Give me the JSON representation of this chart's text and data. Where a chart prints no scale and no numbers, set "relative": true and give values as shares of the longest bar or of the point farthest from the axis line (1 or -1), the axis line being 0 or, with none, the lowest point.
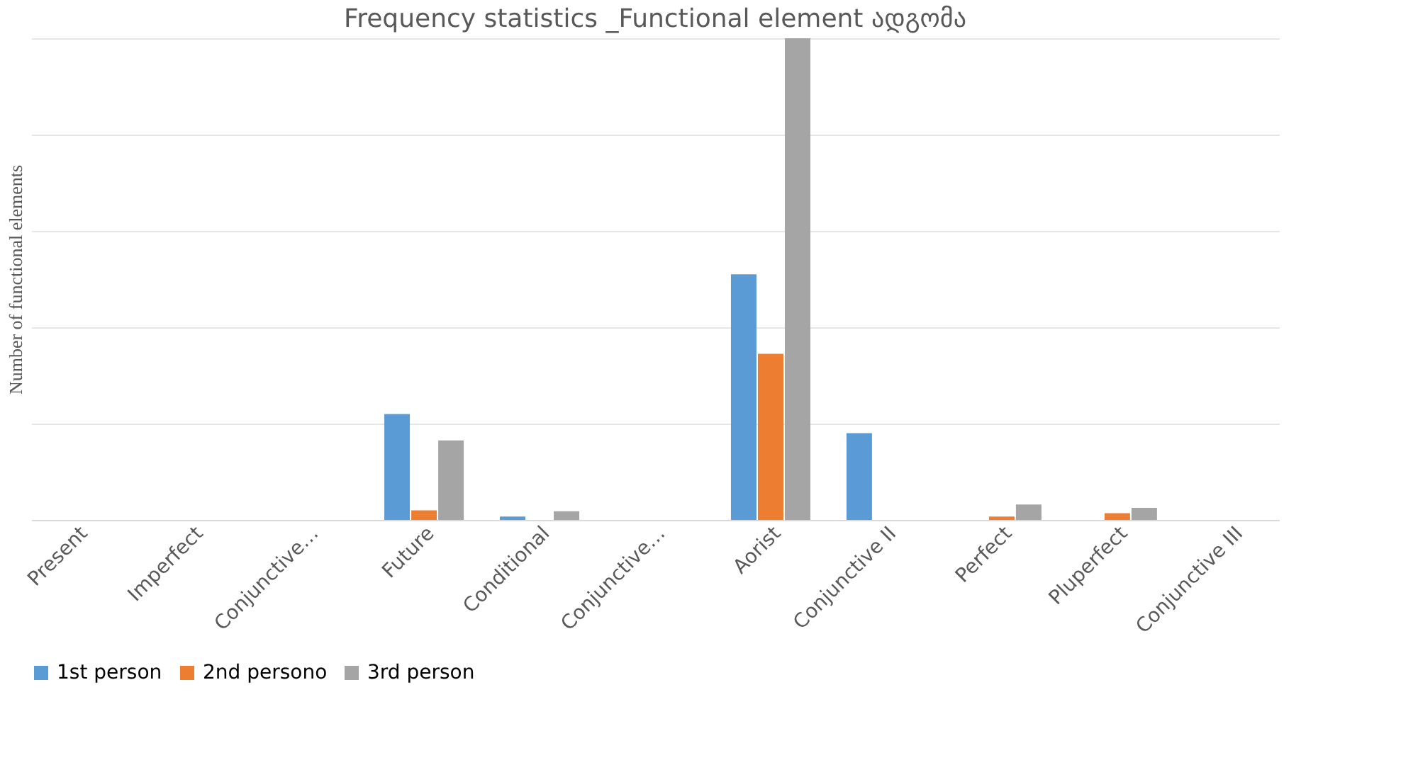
{
  "chart_data": {
    "type": "bar",
    "title": "Frequency statistics _Functional element ადგომა",
    "ylabel": "Number of functional elements",
    "relative": true,
    "grid": "y",
    "legend": "bottom",
    "categories": [
      "Present",
      "Imperfect",
      "Conjunctive…",
      "Future",
      "Conditional",
      "Conjunctive…",
      "Aorist",
      "Conjunctive II",
      "Perfect",
      "Pluperfect",
      "Conjunctive III"
    ],
    "series": [
      {
        "name": "1st person",
        "color": "#5b9bd5",
        "values": [
          0,
          0,
          0,
          0.22,
          0.007,
          0,
          0.51,
          0.18,
          0,
          0,
          0
        ]
      },
      {
        "name": "2nd persono",
        "color": "#ed7d31",
        "values": [
          0,
          0,
          0,
          0.02,
          0,
          0,
          0.345,
          0,
          0.007,
          0.014,
          0
        ]
      },
      {
        "name": "3rd person",
        "color": "#a5a5a5",
        "values": [
          0,
          0,
          0,
          0.165,
          0.018,
          0,
          1,
          0,
          0.032,
          0.025,
          0
        ]
      }
    ]
  }
}
